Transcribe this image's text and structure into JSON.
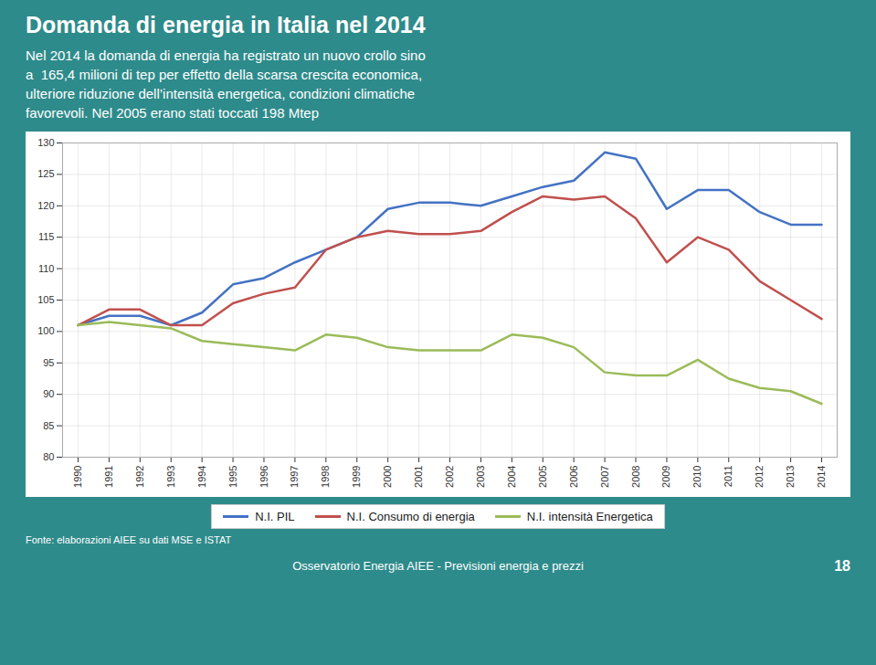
{
  "chart_data": {
    "type": "line",
    "title": "Domanda di energia in Italia nel 2014",
    "subtitle": [
      "Nel 2014 la domanda di energia ha registrato un nuovo crollo sino",
      "a  165,4 milioni di tep per effetto della scarsa crescita economica,",
      "ulteriore riduzione dell’intensità energetica, condizioni climatiche",
      "favorevoli. Nel 2005 erano stati toccati 198 Mtep"
    ],
    "annotations": [
      "Fonte: elaborazioni AIEE su dati MSE e ISTAT",
      "Osservatorio Energia AIEE - Previsioni energia e prezzi",
      "18"
    ],
    "x": [
      1990,
      1991,
      1992,
      1993,
      1994,
      1995,
      1996,
      1997,
      1998,
      1999,
      2000,
      2001,
      2002,
      2003,
      2004,
      2005,
      2006,
      2007,
      2008,
      2009,
      2010,
      2011,
      2012,
      2013,
      2014
    ],
    "series": [
      {
        "name": "N.I. PIL",
        "color": "#4472C4",
        "values": [
          101,
          102.5,
          102.5,
          101,
          103,
          107.5,
          108.5,
          111,
          113,
          115,
          119.5,
          120.5,
          120.5,
          120,
          121.5,
          123,
          124,
          128.5,
          127.5,
          119.5,
          122.5,
          122.5,
          119,
          117,
          117
        ]
      },
      {
        "name": "N.I. Consumo di energia",
        "color": "#C0504D",
        "values": [
          101,
          103.5,
          103.5,
          101,
          101,
          104.5,
          106,
          107,
          113,
          115,
          116,
          115.5,
          115.5,
          116,
          119,
          121.5,
          121,
          121.5,
          118,
          111,
          115,
          113,
          108,
          105,
          102
        ]
      },
      {
        "name": "N.I. intensità Energetica",
        "color": "#9BBB59",
        "values": [
          101,
          101.5,
          101,
          100.5,
          98.5,
          98,
          97.5,
          97,
          99.5,
          99,
          97.5,
          97,
          97,
          97,
          99.5,
          99,
          97.5,
          93.5,
          93,
          93,
          95.5,
          92.5,
          91,
          90.5,
          88.5
        ]
      }
    ],
    "xlim": [
      1989.5,
      2014.5
    ],
    "xticks": [
      1990,
      1991,
      1992,
      1993,
      1994,
      1995,
      1996,
      1997,
      1998,
      1999,
      2000,
      2001,
      2002,
      2003,
      2004,
      2005,
      2006,
      2007,
      2008,
      2009,
      2010,
      2011,
      2012,
      2013,
      2014
    ],
    "ylim": [
      80,
      130
    ],
    "yticks": [
      80,
      85,
      90,
      95,
      100,
      105,
      110,
      115,
      120,
      125,
      130
    ],
    "grid": true,
    "legend": "bottom"
  }
}
